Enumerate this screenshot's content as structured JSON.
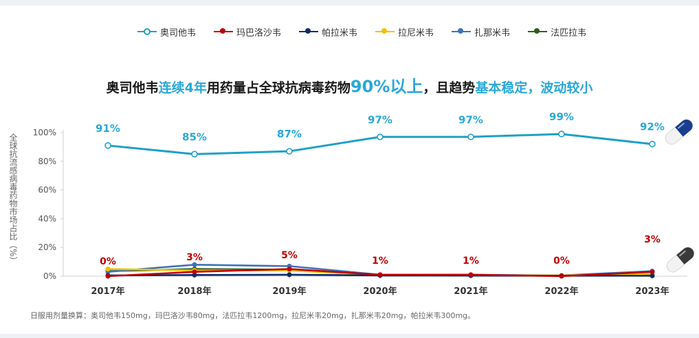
{
  "chart_data": {
    "type": "line",
    "title": "奥司他韦连续4年用药量占全球抗病毒药物90%以上，且趋势基本稳定，波动较小",
    "title_parts": [
      {
        "text": "奥司他韦",
        "style": "normal"
      },
      {
        "text": "连续4年",
        "style": "highlight"
      },
      {
        "text": "用药量占全球抗病毒药物",
        "style": "normal"
      },
      {
        "text": "90%以上",
        "style": "highlight-big"
      },
      {
        "text": "，且趋势",
        "style": "normal"
      },
      {
        "text": "基本稳定，波动较小",
        "style": "highlight"
      }
    ],
    "ylabel": "全球抗流感病毒药物市场占比（%）",
    "xlabel": "",
    "categories": [
      "2017年",
      "2018年",
      "2019年",
      "2020年",
      "2021年",
      "2022年",
      "2023年"
    ],
    "yticks": [
      "0%",
      "20%",
      "40%",
      "60%",
      "80%",
      "100%"
    ],
    "ylim": [
      0,
      100
    ],
    "grid": false,
    "legend_position": "top",
    "series": [
      {
        "name": "奥司他韦",
        "color": "#1fa0c8",
        "values": [
          91,
          85,
          87,
          97,
          97,
          99,
          92
        ],
        "markers": "hollow",
        "labels": [
          "91%",
          "85%",
          "87%",
          "97%",
          "97%",
          "99%",
          "92%"
        ],
        "label_color": "#29a8d8"
      },
      {
        "name": "玛巴洛沙韦",
        "color": "#c00000",
        "values": [
          0,
          3,
          5,
          1,
          1,
          0,
          3
        ],
        "markers": "filled",
        "labels": [
          "0%",
          "3%",
          "5%",
          "1%",
          "1%",
          "0%",
          "3%"
        ],
        "label_color": "#c00000"
      },
      {
        "name": "帕拉米韦",
        "color": "#0d2a6e",
        "values": [
          0.5,
          0.8,
          1.0,
          0.5,
          0.4,
          0.3,
          0.3
        ],
        "markers": "filled"
      },
      {
        "name": "拉尼米韦",
        "color": "#f2c000",
        "values": [
          5,
          4,
          4,
          0.6,
          0.5,
          0.5,
          1.5
        ],
        "markers": "filled"
      },
      {
        "name": "扎那米韦",
        "color": "#3f72b8",
        "values": [
          3,
          8,
          7,
          1,
          1,
          0.5,
          3.5
        ],
        "markers": "filled"
      },
      {
        "name": "法匹拉韦",
        "color": "#2e5e1e",
        "values": [
          3.5,
          5,
          4.5,
          0.5,
          0.5,
          0.5,
          0.3
        ],
        "markers": "filled"
      }
    ]
  },
  "footnote": "日服用剂量换算：奥司他韦150mg，玛巴洛沙韦80mg，法匹拉韦1200mg，拉尼米韦20mg，扎那米韦20mg，帕拉米韦300mg。"
}
